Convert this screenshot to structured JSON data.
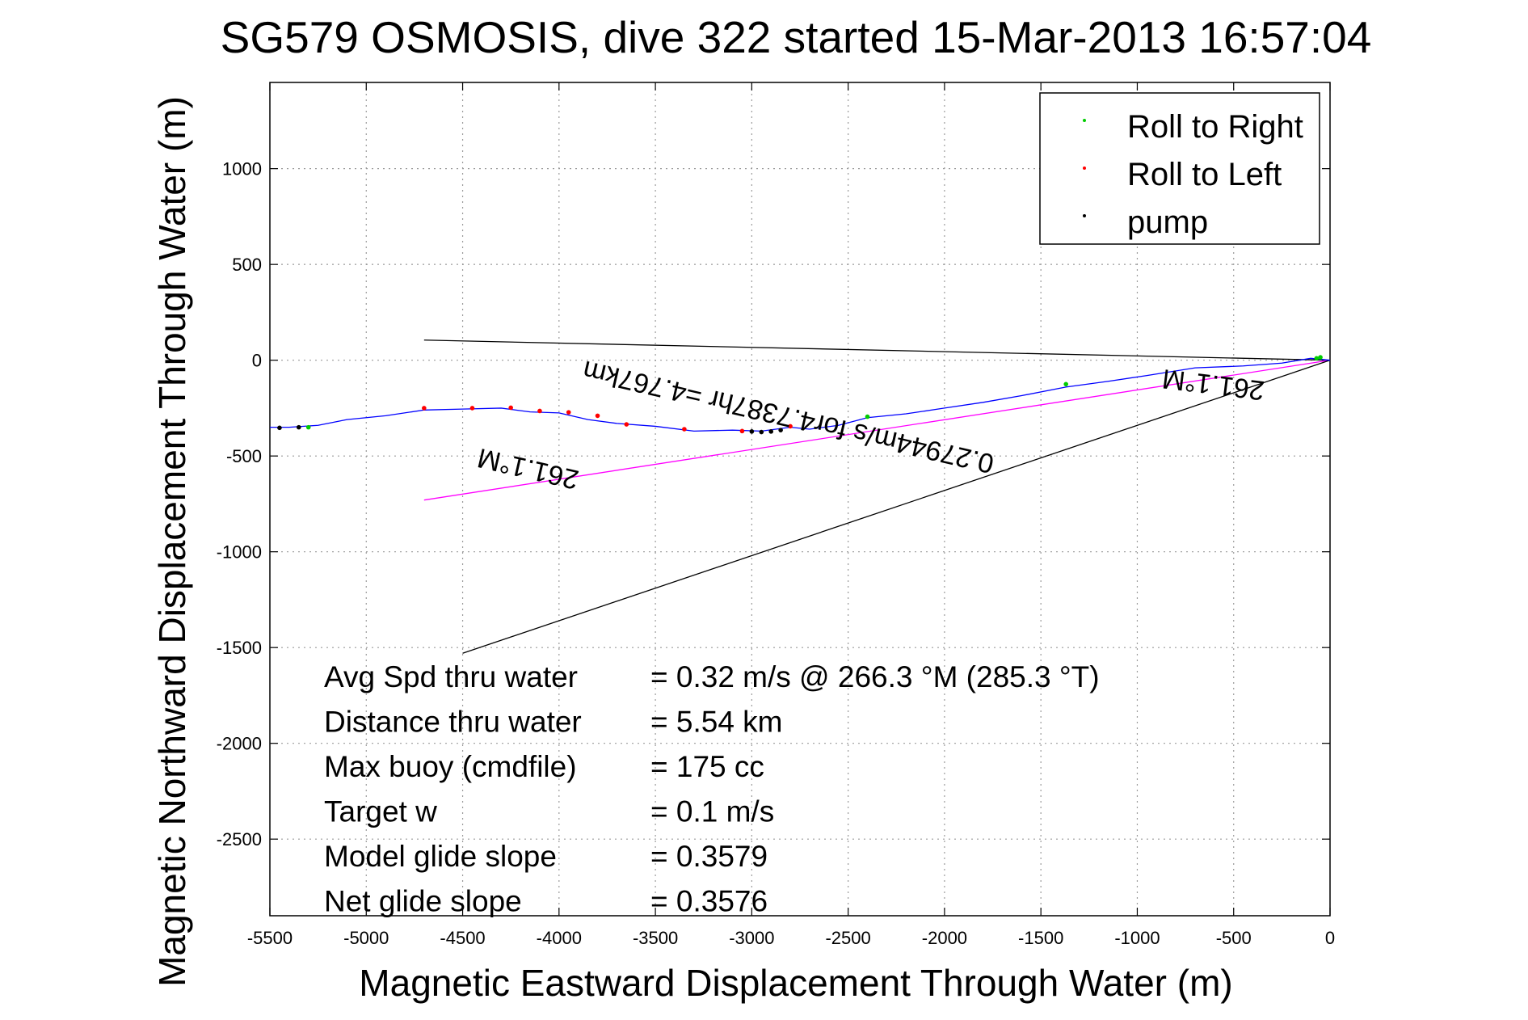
{
  "chart_data": {
    "type": "line",
    "title": "SG579 OSMOSIS, dive 322 started 15-Mar-2013 16:57:04",
    "xlabel": "Magnetic Eastward Displacement Through Water (m)",
    "ylabel": "Magnetic Northward Displacement Through Water (m)",
    "xlim": [
      -5500,
      0
    ],
    "ylim": [
      -2900,
      1450
    ],
    "xticks": [
      -5500,
      -5000,
      -4500,
      -4000,
      -3500,
      -3000,
      -2500,
      -2000,
      -1500,
      -1000,
      -500,
      0
    ],
    "yticks": [
      1000,
      500,
      0,
      -500,
      -1000,
      -1500,
      -2000,
      -2500
    ],
    "grid": true,
    "legend_position": "top-right",
    "legend": [
      {
        "name": "Roll to Right",
        "color": "#00cc00"
      },
      {
        "name": "Roll to Left",
        "color": "#ff0000"
      },
      {
        "name": "pump",
        "color": "#000000"
      }
    ],
    "track": {
      "color": "#0000ff",
      "x": [
        0,
        -100,
        -250,
        -450,
        -700,
        -950,
        -1150,
        -1370,
        -1600,
        -1800,
        -2000,
        -2200,
        -2400,
        -2550,
        -2700,
        -2800,
        -2950,
        -3100,
        -3300,
        -3500,
        -3700,
        -3850,
        -4000,
        -4150,
        -4300,
        -4500,
        -4700,
        -4900,
        -5100,
        -5250,
        -5400,
        -5500
      ],
      "y": [
        0,
        10,
        -15,
        -30,
        -40,
        -80,
        -110,
        -140,
        -185,
        -220,
        -250,
        -280,
        -300,
        -340,
        -360,
        -350,
        -370,
        -365,
        -370,
        -345,
        -330,
        -310,
        -275,
        -270,
        -250,
        -255,
        -260,
        -290,
        -310,
        -340,
        -350,
        -350
      ]
    },
    "roll_right": {
      "x": [
        -50,
        -70,
        -1370,
        -2400,
        -5300
      ],
      "y": [
        15,
        10,
        -125,
        -295,
        -350
      ]
    },
    "roll_left": {
      "x": [
        -4700,
        -4450,
        -4250,
        -4100,
        -3950,
        -3800,
        -3650,
        -3350,
        -3050,
        -2800
      ],
      "y": [
        -250,
        -250,
        -248,
        -265,
        -272,
        -290,
        -335,
        -360,
        -370,
        -345
      ]
    },
    "pump": {
      "x": [
        -3000,
        -2950,
        -2900,
        -2850,
        -5350,
        -5450
      ],
      "y": [
        -372,
        -375,
        -372,
        -365,
        -350,
        -353
      ]
    },
    "lines": [
      {
        "color": "#000000",
        "x": [
          0,
          -4700
        ],
        "y": [
          0,
          105
        ]
      },
      {
        "color": "#ff00ff",
        "x": [
          0,
          -4700
        ],
        "y": [
          0,
          -730
        ]
      },
      {
        "color": "#000000",
        "x": [
          0,
          -4500
        ],
        "y": [
          0,
          -1530
        ]
      }
    ],
    "annotations": [
      {
        "text": "261.1°M",
        "x": -600,
        "y": -80
      },
      {
        "text": "0.27944m/s for4.7387hr =4.767km",
        "x": -2800,
        "y": -250
      },
      {
        "text": "261.1°M",
        "x": -4150,
        "y": -520
      }
    ],
    "stats": [
      {
        "label": "Avg Spd thru water",
        "value": "=  0.32 m/s @ 266.3 °M (285.3 °T)"
      },
      {
        "label": "Distance thru water",
        "value": "=  5.54 km"
      },
      {
        "label": "Max buoy (cmdfile)",
        "value": "= 175 cc"
      },
      {
        "label": "Target w",
        "value": "= 0.1 m/s"
      },
      {
        "label": "Model glide slope",
        "value": "= 0.3579"
      },
      {
        "label": "Net glide slope",
        "value": "= 0.3576"
      }
    ]
  }
}
